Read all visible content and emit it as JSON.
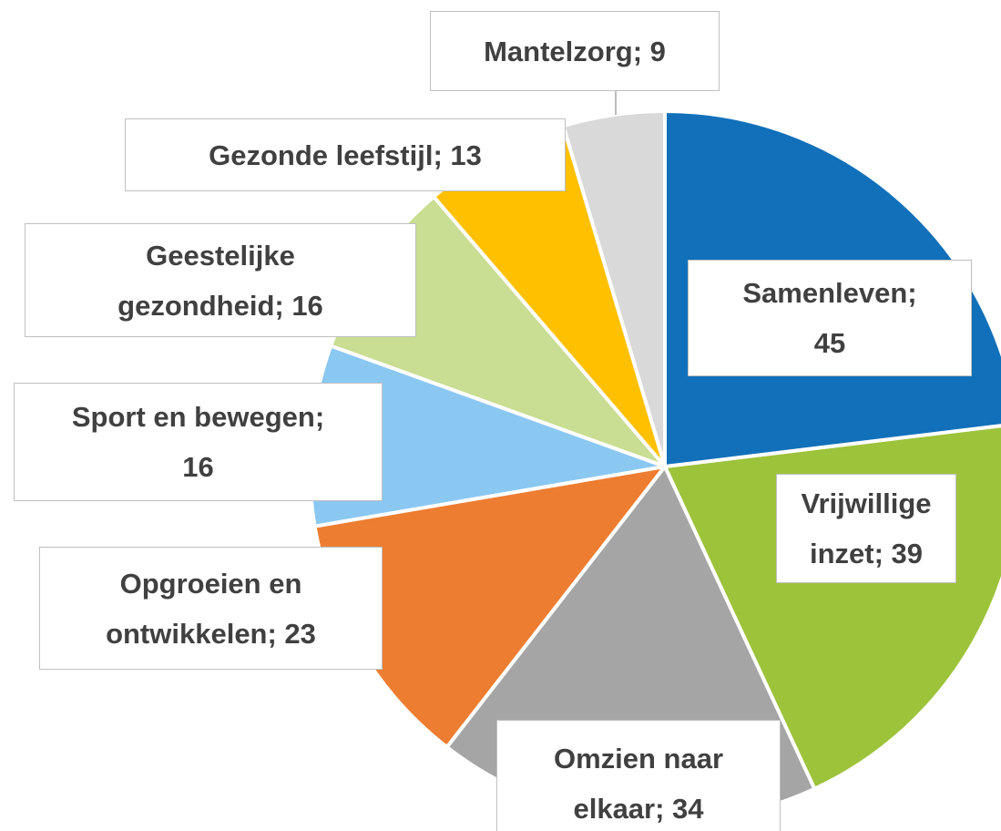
{
  "chart_data": {
    "type": "pie",
    "categories": [
      "Samenleven",
      "Vrijwillige inzet",
      "Omzien naar elkaar",
      "Opgroeien en ontwikkelen",
      "Sport en bewegen",
      "Geestelijke gezondheid",
      "Gezonde leefstijl",
      "Mantelzorg"
    ],
    "values": [
      45,
      39,
      34,
      23,
      16,
      16,
      13,
      9
    ],
    "value_labels": [
      "Samenleven; 45",
      "Vrijwillige inzet; 39",
      "Omzien naar elkaar; 34",
      "Opgroeien en ontwikkelen; 23",
      "Sport en bewegen; 16",
      "Geestelijke gezondheid; 16",
      "Gezonde leefstijl; 13",
      "Mantelzorg; 9"
    ],
    "colors": [
      "#1170b9",
      "#9dc33b",
      "#a5a5a5",
      "#ed7d31",
      "#8ac8f2",
      "#c9dd93",
      "#ffc000",
      "#d9d9d9"
    ]
  }
}
